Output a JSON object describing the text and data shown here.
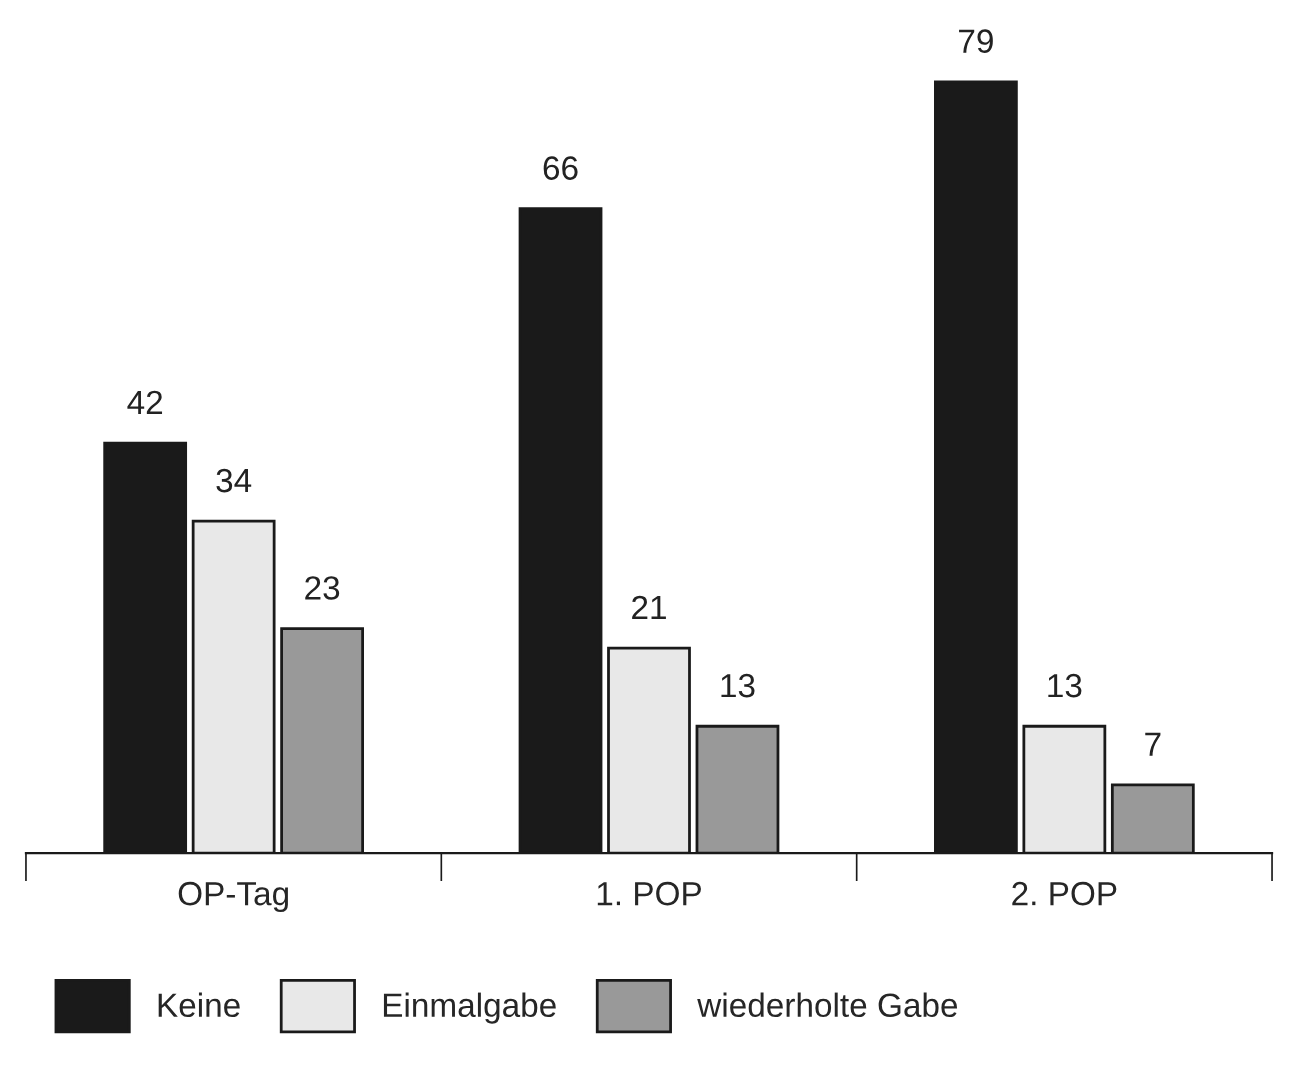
{
  "chart_data": {
    "type": "bar",
    "categories": [
      "OP-Tag",
      "1. POP",
      "2. POP"
    ],
    "series": [
      {
        "name": "Keine",
        "color": "#1a1a1a",
        "values": [
          42,
          66,
          79
        ]
      },
      {
        "name": "Einmalgabe",
        "color": "#e8e8e8",
        "values": [
          34,
          21,
          13
        ]
      },
      {
        "name": "wiederholte Gabe",
        "color": "#999999",
        "values": [
          23,
          13,
          7
        ]
      }
    ],
    "data_labels": true,
    "legend": "bottom",
    "grid": false,
    "tick_labels": "x"
  }
}
